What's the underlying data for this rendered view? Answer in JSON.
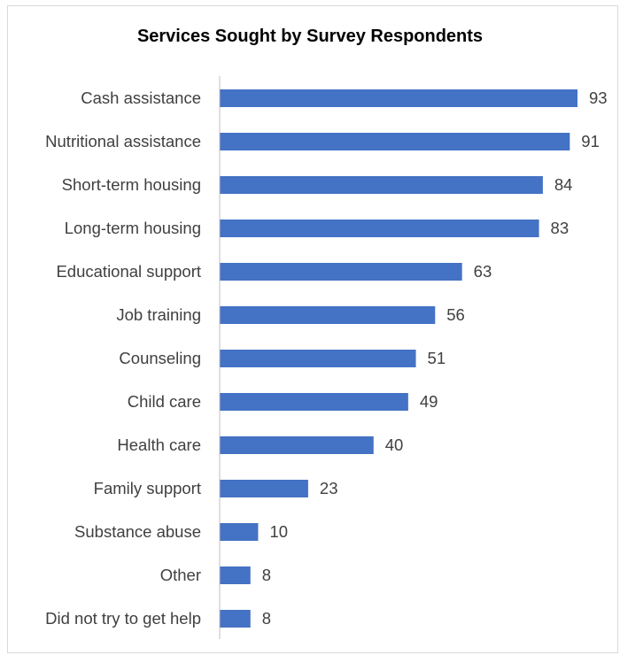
{
  "chart_data": {
    "type": "bar",
    "orientation": "horizontal",
    "title": "Services Sought by Survey Respondents",
    "xlabel": "",
    "ylabel": "",
    "categories": [
      "Cash assistance",
      "Nutritional assistance",
      "Short-term housing",
      "Long-term housing",
      "Educational support",
      "Job training",
      "Counseling",
      "Child care",
      "Health care",
      "Family support",
      "Substance abuse",
      "Other",
      "Did not try to get help"
    ],
    "values": [
      93,
      91,
      84,
      83,
      63,
      56,
      51,
      49,
      40,
      23,
      10,
      8,
      8
    ],
    "xlim": [
      0,
      93
    ],
    "grid": false,
    "legend": "none",
    "data_labels": true,
    "bar_color": "#4472C4"
  }
}
